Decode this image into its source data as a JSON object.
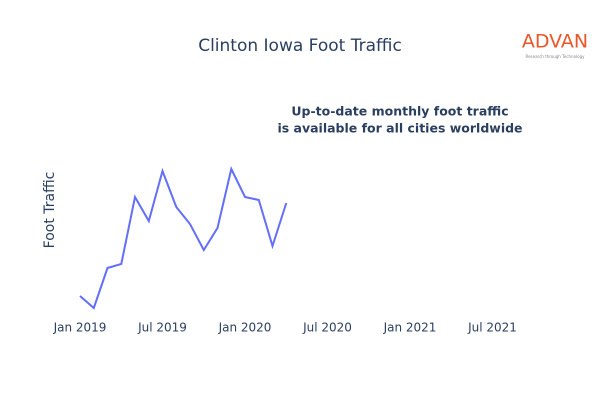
{
  "chart_data": {
    "type": "line",
    "title": "Clinton Iowa Foot Traffic",
    "y_label": "Foot Traffic",
    "annotation": [
      "Up-to-date monthly foot traffic",
      "is available for all cities worldwide"
    ],
    "logo": "ADVAN",
    "logo_tagline": "Research through Technology",
    "x": [
      "2019-01",
      "2019-02",
      "2019-03",
      "2019-04",
      "2019-05",
      "2019-06",
      "2019-07",
      "2019-08",
      "2019-09",
      "2019-10",
      "2019-11",
      "2019-12",
      "2020-01",
      "2020-02",
      "2020-03",
      "2020-04"
    ],
    "series": [
      {
        "name": "Foot Traffic",
        "color": "#636efa",
        "values": [
          24,
          12,
          52,
          56,
          123,
          99,
          149,
          113,
          96,
          70,
          92,
          151,
          123,
          120,
          74,
          117
        ]
      }
    ],
    "xlim": [
      "2018-11",
      "2021-09"
    ],
    "xticks": [
      {
        "value": "2019-01",
        "label": "Jan 2019"
      },
      {
        "value": "2019-07",
        "label": "Jul 2019"
      },
      {
        "value": "2020-01",
        "label": "Jan 2020"
      },
      {
        "value": "2020-07",
        "label": "Jul 2020"
      },
      {
        "value": "2021-01",
        "label": "Jan 2021"
      },
      {
        "value": "2021-07",
        "label": "Jul 2021"
      }
    ],
    "ylim": [
      0,
      160
    ]
  }
}
